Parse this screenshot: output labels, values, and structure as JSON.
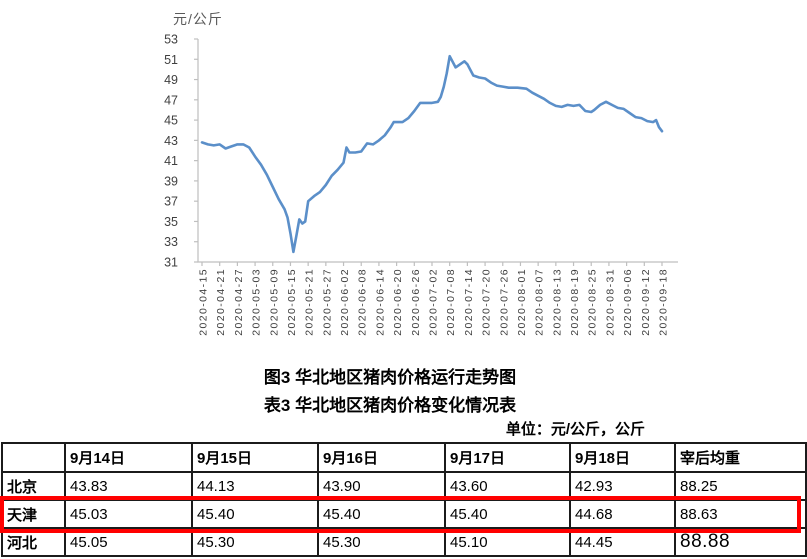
{
  "captions": {
    "figure_title": "图3 华北地区猪肉价格运行走势图",
    "table_title": "表3 华北地区猪肉价格变化情况表",
    "unit_note": "单位：元/公斤，公斤"
  },
  "chart_data": {
    "type": "line",
    "title": "图3 华北地区猪肉价格运行走势图",
    "xlabel": "",
    "ylabel": "元/公斤",
    "ylim": [
      31,
      53
    ],
    "y_ticks": [
      31,
      33,
      35,
      37,
      39,
      41,
      43,
      45,
      47,
      49,
      51,
      53
    ],
    "x_ticks": [
      "2020-04-15",
      "2020-04-21",
      "2020-04-27",
      "2020-05-03",
      "2020-05-09",
      "2020-05-15",
      "2020-05-21",
      "2020-05-27",
      "2020-06-02",
      "2020-06-08",
      "2020-06-14",
      "2020-06-20",
      "2020-06-26",
      "2020-07-02",
      "2020-07-08",
      "2020-07-14",
      "2020-07-20",
      "2020-07-26",
      "2020-08-01",
      "2020-08-07",
      "2020-08-13",
      "2020-08-19",
      "2020-08-25",
      "2020-08-31",
      "2020-09-06",
      "2020-09-12",
      "2020-09-18"
    ],
    "grid": false,
    "legend": "none",
    "line_color": "#5b8fc9",
    "axis_color": "#bfbfbf",
    "tick_label_color": "#404040",
    "series": [
      {
        "name": "华北地区猪肉价格",
        "points": [
          [
            "2020-04-15",
            42.8
          ],
          [
            "2020-04-17",
            42.6
          ],
          [
            "2020-04-19",
            42.5
          ],
          [
            "2020-04-21",
            42.6
          ],
          [
            "2020-04-23",
            42.2
          ],
          [
            "2020-04-25",
            42.4
          ],
          [
            "2020-04-27",
            42.6
          ],
          [
            "2020-04-29",
            42.6
          ],
          [
            "2020-05-01",
            42.3
          ],
          [
            "2020-05-03",
            41.4
          ],
          [
            "2020-05-05",
            40.6
          ],
          [
            "2020-05-07",
            39.6
          ],
          [
            "2020-05-09",
            38.4
          ],
          [
            "2020-05-11",
            37.2
          ],
          [
            "2020-05-13",
            36.2
          ],
          [
            "2020-05-14",
            35.4
          ],
          [
            "2020-05-15",
            33.8
          ],
          [
            "2020-05-16",
            32.0
          ],
          [
            "2020-05-17",
            33.6
          ],
          [
            "2020-05-18",
            35.2
          ],
          [
            "2020-05-19",
            34.8
          ],
          [
            "2020-05-20",
            35.0
          ],
          [
            "2020-05-21",
            37.0
          ],
          [
            "2020-05-23",
            37.5
          ],
          [
            "2020-05-25",
            37.9
          ],
          [
            "2020-05-27",
            38.6
          ],
          [
            "2020-05-29",
            39.5
          ],
          [
            "2020-05-31",
            40.1
          ],
          [
            "2020-06-02",
            40.8
          ],
          [
            "2020-06-03",
            42.3
          ],
          [
            "2020-06-04",
            41.8
          ],
          [
            "2020-06-06",
            41.8
          ],
          [
            "2020-06-08",
            41.9
          ],
          [
            "2020-06-10",
            42.7
          ],
          [
            "2020-06-12",
            42.6
          ],
          [
            "2020-06-14",
            43.0
          ],
          [
            "2020-06-16",
            43.5
          ],
          [
            "2020-06-18",
            44.3
          ],
          [
            "2020-06-19",
            44.8
          ],
          [
            "2020-06-22",
            44.8
          ],
          [
            "2020-06-24",
            45.2
          ],
          [
            "2020-06-26",
            45.9
          ],
          [
            "2020-06-28",
            46.7
          ],
          [
            "2020-07-02",
            46.7
          ],
          [
            "2020-07-04",
            46.8
          ],
          [
            "2020-07-05",
            47.3
          ],
          [
            "2020-07-06",
            48.3
          ],
          [
            "2020-07-07",
            49.6
          ],
          [
            "2020-07-08",
            51.3
          ],
          [
            "2020-07-10",
            50.2
          ],
          [
            "2020-07-12",
            50.6
          ],
          [
            "2020-07-13",
            50.8
          ],
          [
            "2020-07-14",
            50.5
          ],
          [
            "2020-07-16",
            49.4
          ],
          [
            "2020-07-18",
            49.2
          ],
          [
            "2020-07-20",
            49.1
          ],
          [
            "2020-07-22",
            48.7
          ],
          [
            "2020-07-24",
            48.4
          ],
          [
            "2020-07-26",
            48.3
          ],
          [
            "2020-07-28",
            48.2
          ],
          [
            "2020-07-31",
            48.2
          ],
          [
            "2020-08-03",
            48.1
          ],
          [
            "2020-08-05",
            47.7
          ],
          [
            "2020-08-07",
            47.4
          ],
          [
            "2020-08-09",
            47.1
          ],
          [
            "2020-08-11",
            46.7
          ],
          [
            "2020-08-13",
            46.4
          ],
          [
            "2020-08-15",
            46.3
          ],
          [
            "2020-08-17",
            46.5
          ],
          [
            "2020-08-19",
            46.4
          ],
          [
            "2020-08-21",
            46.5
          ],
          [
            "2020-08-23",
            45.9
          ],
          [
            "2020-08-25",
            45.8
          ],
          [
            "2020-08-26",
            46.0
          ],
          [
            "2020-08-28",
            46.5
          ],
          [
            "2020-08-30",
            46.8
          ],
          [
            "2020-09-01",
            46.5
          ],
          [
            "2020-09-03",
            46.2
          ],
          [
            "2020-09-05",
            46.1
          ],
          [
            "2020-09-07",
            45.7
          ],
          [
            "2020-09-09",
            45.3
          ],
          [
            "2020-09-11",
            45.2
          ],
          [
            "2020-09-13",
            44.9
          ],
          [
            "2020-09-15",
            44.8
          ],
          [
            "2020-09-16",
            45.0
          ],
          [
            "2020-09-17",
            44.3
          ],
          [
            "2020-09-18",
            43.9
          ]
        ]
      }
    ]
  },
  "table": {
    "columns": [
      "",
      "9月14日",
      "9月15日",
      "9月16日",
      "9月17日",
      "9月18日",
      "宰后均重"
    ],
    "highlight_color": "#ff0000",
    "rows": [
      {
        "region": "北京",
        "values": [
          "43.83",
          "44.13",
          "43.90",
          "43.60",
          "42.93",
          "88.25"
        ],
        "highlighted": false
      },
      {
        "region": "天津",
        "values": [
          "45.03",
          "45.40",
          "45.40",
          "45.40",
          "44.68",
          "88.63"
        ],
        "highlighted": true
      },
      {
        "region": "河北",
        "values": [
          "45.05",
          "45.30",
          "45.30",
          "45.10",
          "44.45",
          "88.88"
        ],
        "highlighted": false
      }
    ]
  }
}
